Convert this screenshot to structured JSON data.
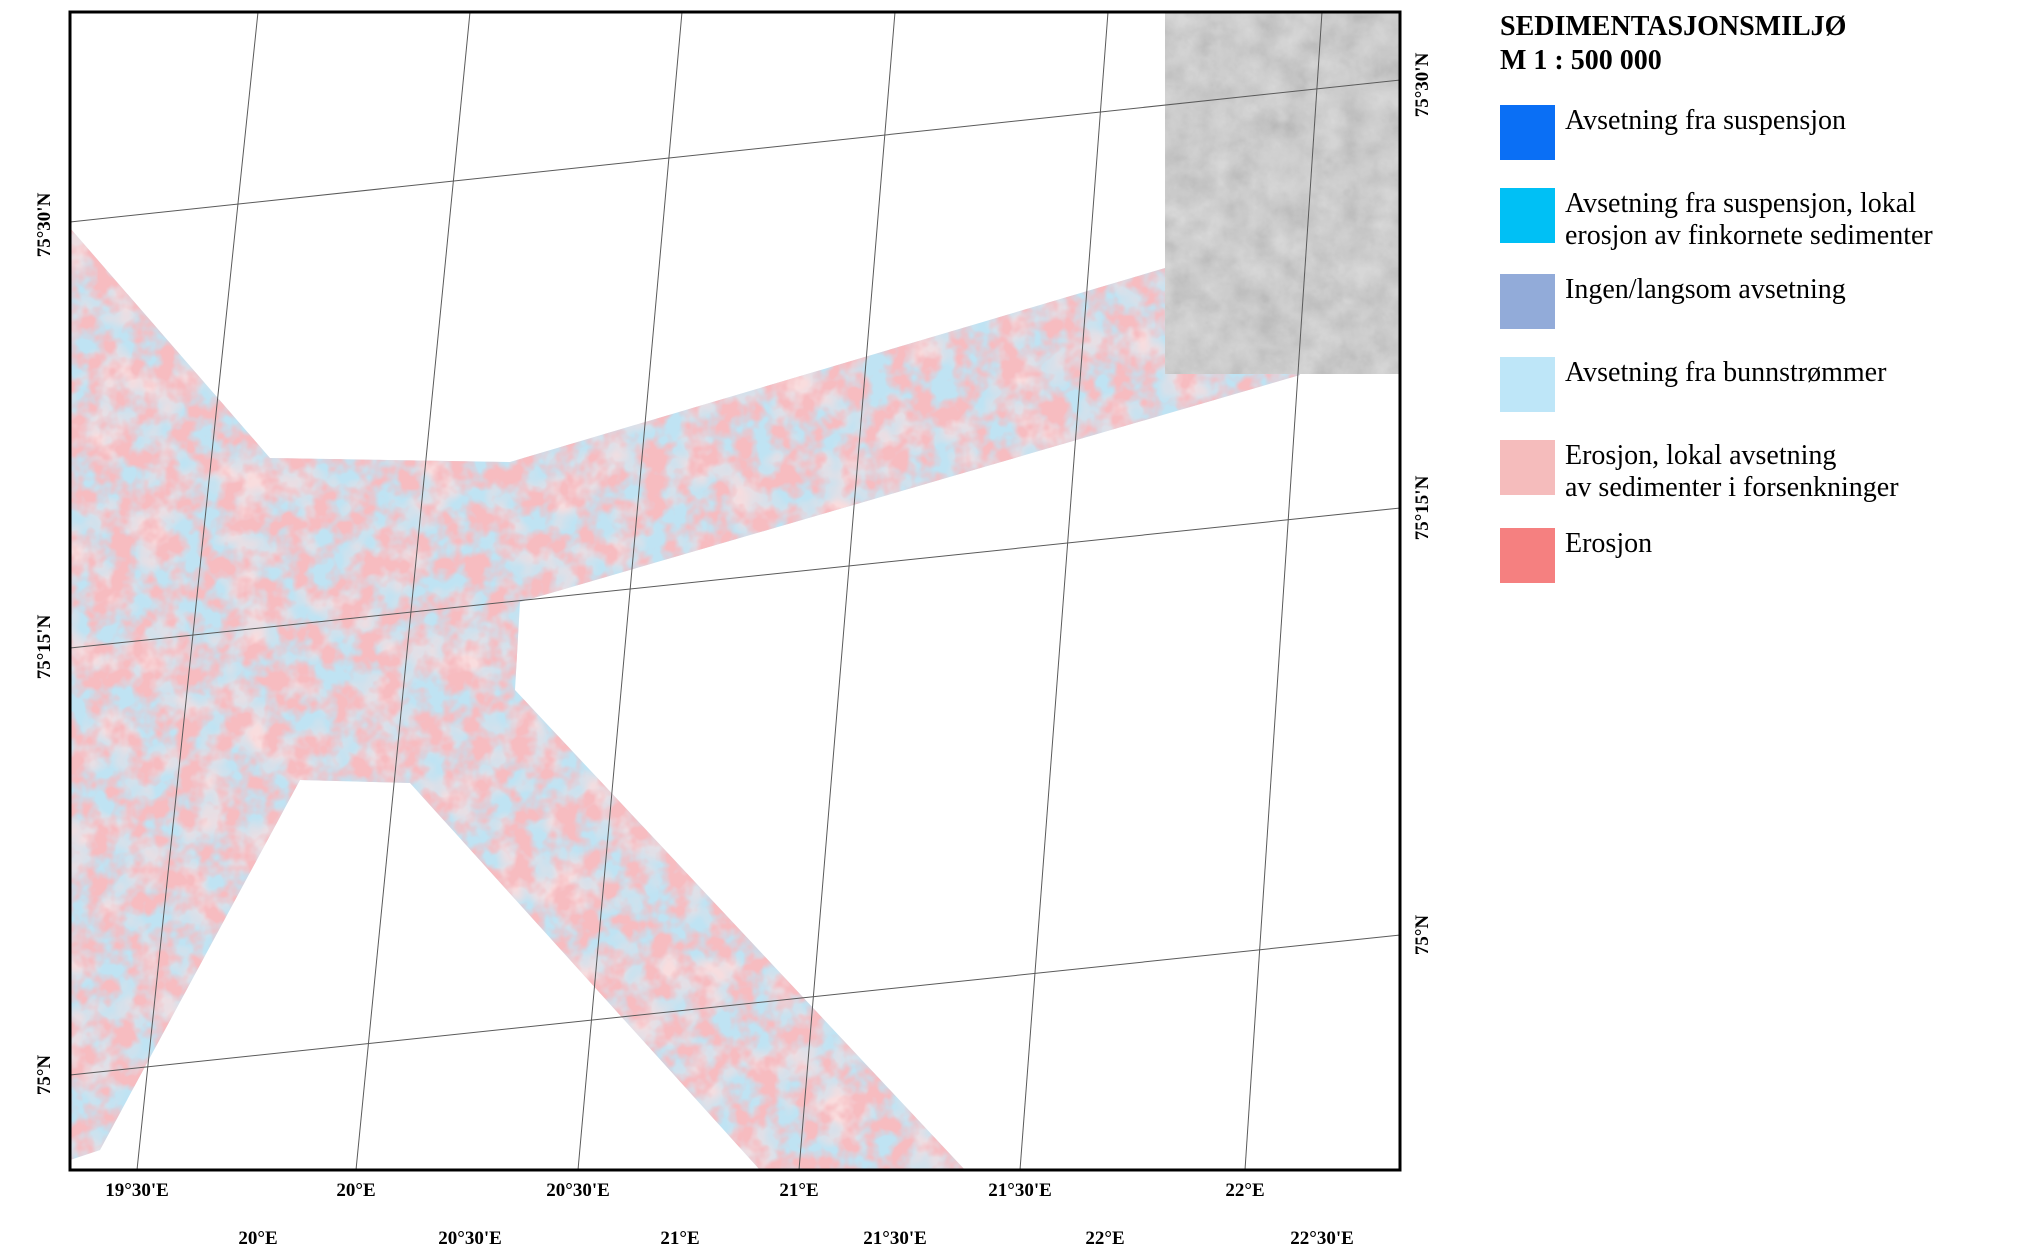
{
  "legend": {
    "title_line1": "SEDIMENTASJONSMILJØ",
    "title_line2": "M 1 : 500 000",
    "items": [
      {
        "label": "Avsetning fra suspensjon",
        "label2": "",
        "color": "#0a6ff5"
      },
      {
        "label": "Avsetning fra suspensjon, lokal",
        "label2": "erosjon av finkornete sedimenter",
        "color": "#00c0f5"
      },
      {
        "label": "Ingen/langsom avsetning",
        "label2": "",
        "color": "#92abd9"
      },
      {
        "label": "Avsetning fra bunnstrømmer",
        "label2": "",
        "color": "#bee6f8"
      },
      {
        "label": "Erosjon, lokal avsetning",
        "label2": "av sedimenter i forsenkninger",
        "color": "#f5bcbc"
      },
      {
        "label": "Erosjon",
        "label2": "",
        "color": "#f58080"
      }
    ]
  },
  "map": {
    "left_lat_labels": [
      "75°30'N",
      "75°15'N",
      "75°N"
    ],
    "right_lat_labels": [
      "75°30'N",
      "75°15'N",
      "75°N"
    ],
    "bottom_lon_labels": [
      "19°30'E",
      "20°E",
      "20°30'E",
      "21°E",
      "21°30'E",
      "22°E"
    ],
    "lower_lon_labels": [
      "20°E",
      "20°30'E",
      "21°E",
      "21°30'E",
      "22°E",
      "22°30'E"
    ],
    "colors": {
      "frame": "#000000",
      "grid": "#5a5a5a",
      "light_blue": "#bfe3f3",
      "light_pink": "#f2b8bb",
      "erosion": "#ec7f86",
      "relief": "#a6a6a6"
    }
  }
}
